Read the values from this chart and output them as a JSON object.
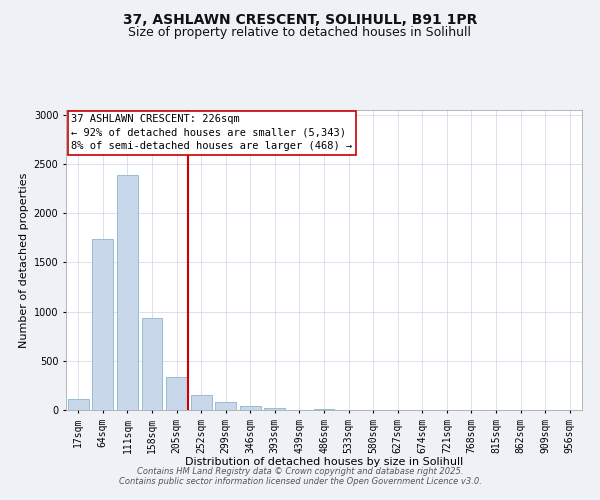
{
  "title": "37, ASHLAWN CRESCENT, SOLIHULL, B91 1PR",
  "subtitle": "Size of property relative to detached houses in Solihull",
  "xlabel": "Distribution of detached houses by size in Solihull",
  "ylabel": "Number of detached properties",
  "bin_labels": [
    "17sqm",
    "64sqm",
    "111sqm",
    "158sqm",
    "205sqm",
    "252sqm",
    "299sqm",
    "346sqm",
    "393sqm",
    "439sqm",
    "486sqm",
    "533sqm",
    "580sqm",
    "627sqm",
    "674sqm",
    "721sqm",
    "768sqm",
    "815sqm",
    "862sqm",
    "909sqm",
    "956sqm"
  ],
  "bar_values": [
    113,
    1735,
    2390,
    940,
    340,
    155,
    82,
    40,
    20,
    0,
    15,
    0,
    0,
    0,
    0,
    0,
    0,
    0,
    0,
    0,
    0
  ],
  "bar_color": "#c8d8ea",
  "bar_edgecolor": "#7baac8",
  "vline_color": "#cc0000",
  "annotation_box_text": "37 ASHLAWN CRESCENT: 226sqm\n← 92% of detached houses are smaller (5,343)\n8% of semi-detached houses are larger (468) →",
  "box_edgecolor": "#cc0000",
  "ylim": [
    0,
    3050
  ],
  "yticks": [
    0,
    500,
    1000,
    1500,
    2000,
    2500,
    3000
  ],
  "footer1": "Contains HM Land Registry data © Crown copyright and database right 2025.",
  "footer2": "Contains public sector information licensed under the Open Government Licence v3.0.",
  "bg_color": "#eef2f7",
  "plot_bg_color": "#ffffff",
  "grid_color": "#ccd6e8",
  "title_fontsize": 10,
  "subtitle_fontsize": 9,
  "label_fontsize": 8,
  "tick_fontsize": 7,
  "annotation_fontsize": 7.5,
  "footer_fontsize": 6
}
